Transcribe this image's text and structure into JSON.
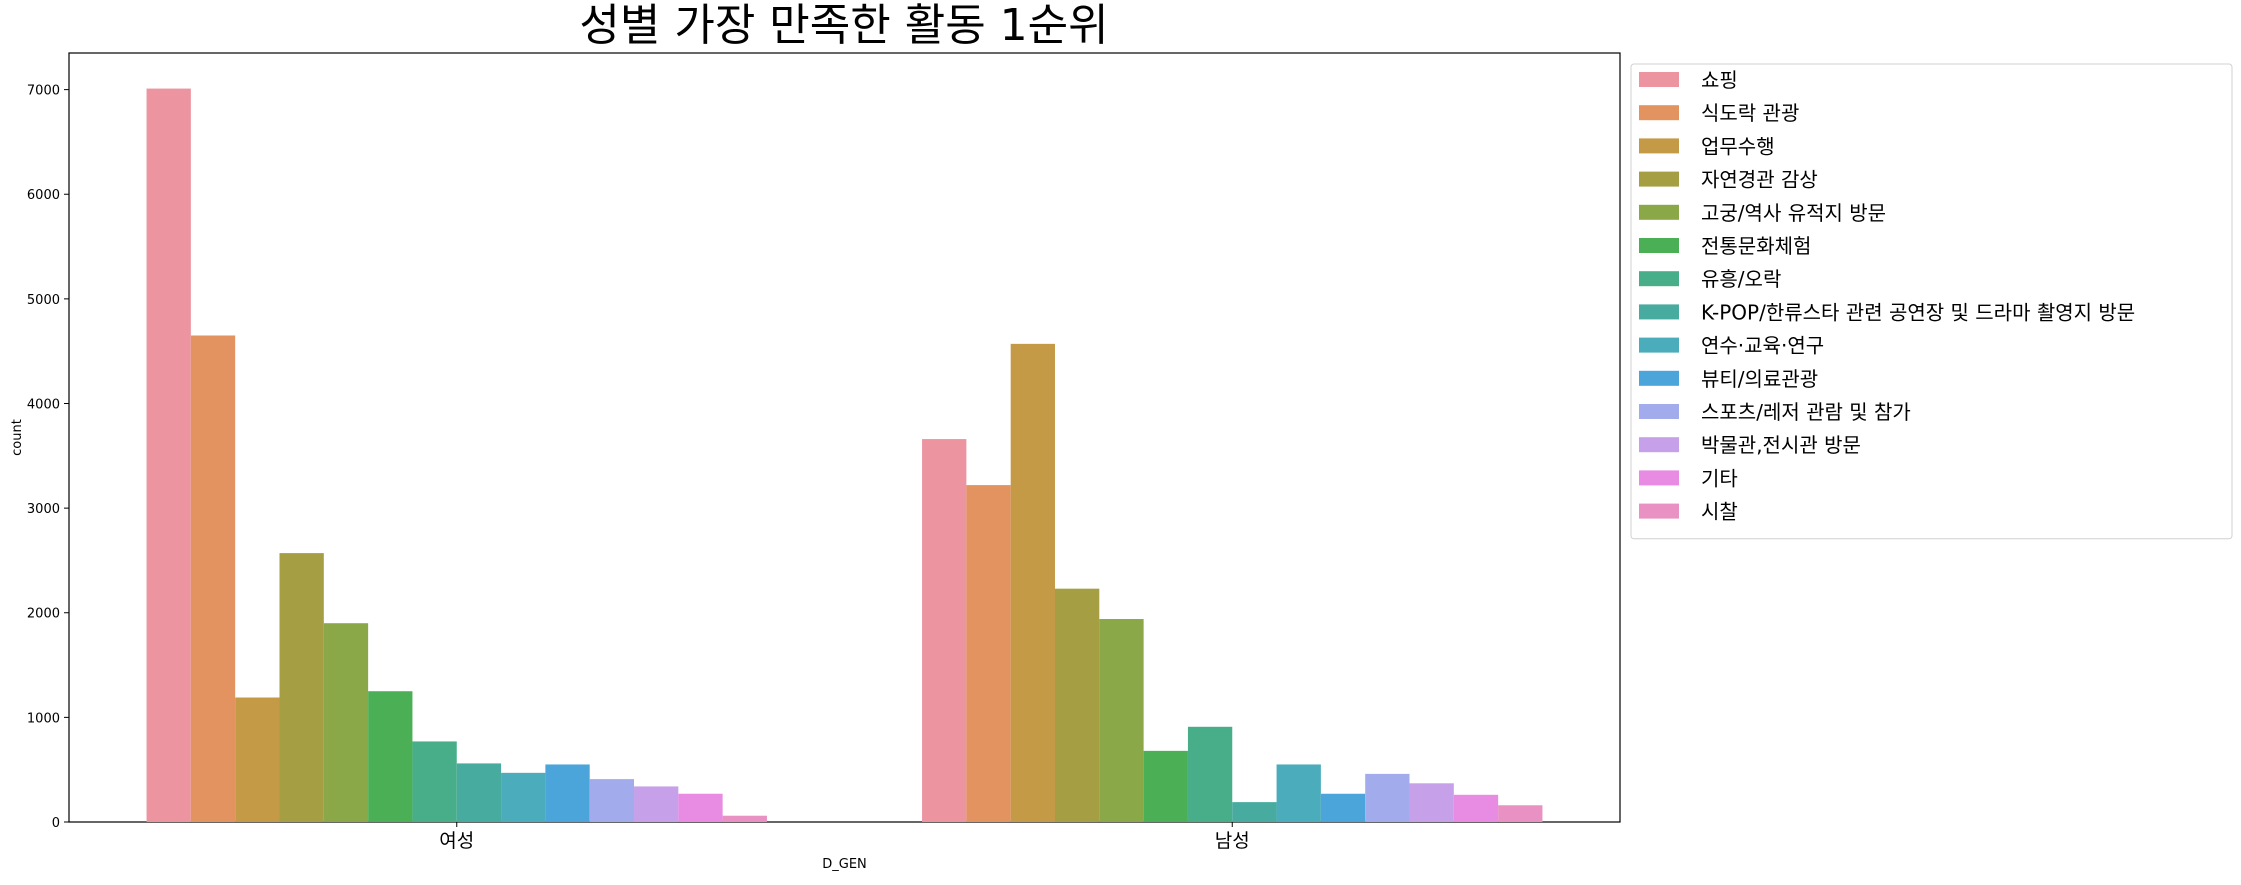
{
  "chart_data": {
    "type": "bar",
    "title": "성별 가장 만족한 활동 1순위",
    "xlabel": "D_GEN",
    "ylabel": "count",
    "categories": [
      "여성",
      "남성"
    ],
    "ylim": [
      0,
      7350
    ],
    "yticks": [
      0,
      1000,
      2000,
      3000,
      4000,
      5000,
      6000,
      7000
    ],
    "grid": false,
    "legend_position": "outside-right",
    "series": [
      {
        "name": "쇼핑",
        "color": "#ec95a1",
        "values": [
          7010,
          3660
        ]
      },
      {
        "name": "식도락 관광",
        "color": "#e3935f",
        "values": [
          4650,
          3220
        ]
      },
      {
        "name": "업무수행",
        "color": "#c59a47",
        "values": [
          1190,
          4570
        ]
      },
      {
        "name": "자연경관 감상",
        "color": "#a69e42",
        "values": [
          2570,
          2230
        ]
      },
      {
        "name": "고궁/역사 유적지 방문",
        "color": "#8aa847",
        "values": [
          1900,
          1940
        ]
      },
      {
        "name": "전통문화체험",
        "color": "#4bb055",
        "values": [
          1250,
          680
        ]
      },
      {
        "name": "유흥/오락",
        "color": "#47ae89",
        "values": [
          770,
          910
        ]
      },
      {
        "name": "K-POP/한류스타 관련 공연장 및 드라마 촬영지 방문",
        "color": "#48ab9f",
        "values": [
          560,
          190
        ]
      },
      {
        "name": "연수·교육·연구",
        "color": "#4badbb",
        "values": [
          470,
          550
        ]
      },
      {
        "name": "뷰티/의료관광",
        "color": "#4ba5da",
        "values": [
          550,
          270
        ]
      },
      {
        "name": "스포츠/레저 관람 및 참가",
        "color": "#a2acec",
        "values": [
          410,
          460
        ]
      },
      {
        "name": "박물관,전시관 방문",
        "color": "#c6a1ea",
        "values": [
          340,
          370
        ]
      },
      {
        "name": "기타",
        "color": "#e78be3",
        "values": [
          270,
          260
        ]
      },
      {
        "name": "시찰",
        "color": "#e891c2",
        "values": [
          60,
          160
        ]
      }
    ]
  }
}
